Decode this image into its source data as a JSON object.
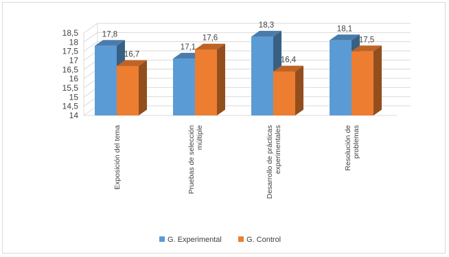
{
  "chart_data": {
    "type": "bar",
    "style": "3d-clustered-column",
    "categories": [
      "Exposición del tema",
      "Pruebas de selección múltiple",
      "Desarrollo de prácticas experimentales",
      "Resolución de problemas"
    ],
    "category_lines": [
      [
        "Exposición del tema"
      ],
      [
        "Pruebas de selección",
        "múltiple"
      ],
      [
        "Desarrollo de prácticas",
        "experimentales"
      ],
      [
        "Resolución de",
        "problemas"
      ]
    ],
    "series": [
      {
        "name": "G. Experimental",
        "values": [
          17.8,
          17.1,
          18.3,
          18.1
        ],
        "labels": [
          "17,8",
          "17,1",
          "18,3",
          "18,1"
        ],
        "color": "#5b9bd5"
      },
      {
        "name": "G. Control",
        "values": [
          16.7,
          17.6,
          16.4,
          17.5
        ],
        "labels": [
          "16,7",
          "17,6",
          "16,4",
          "17,5"
        ],
        "color": "#ed7d31"
      }
    ],
    "ylim": [
      14,
      18.5
    ],
    "yticks": [
      14,
      14.5,
      15,
      15.5,
      16,
      16.5,
      17,
      17.5,
      18,
      18.5
    ],
    "ytick_labels": [
      "14",
      "14,5",
      "15",
      "15,5",
      "16",
      "16,5",
      "17",
      "17,5",
      "18",
      "18,5"
    ],
    "grid": true,
    "legend": "bottom",
    "title": "",
    "xlabel": "",
    "ylabel": ""
  }
}
